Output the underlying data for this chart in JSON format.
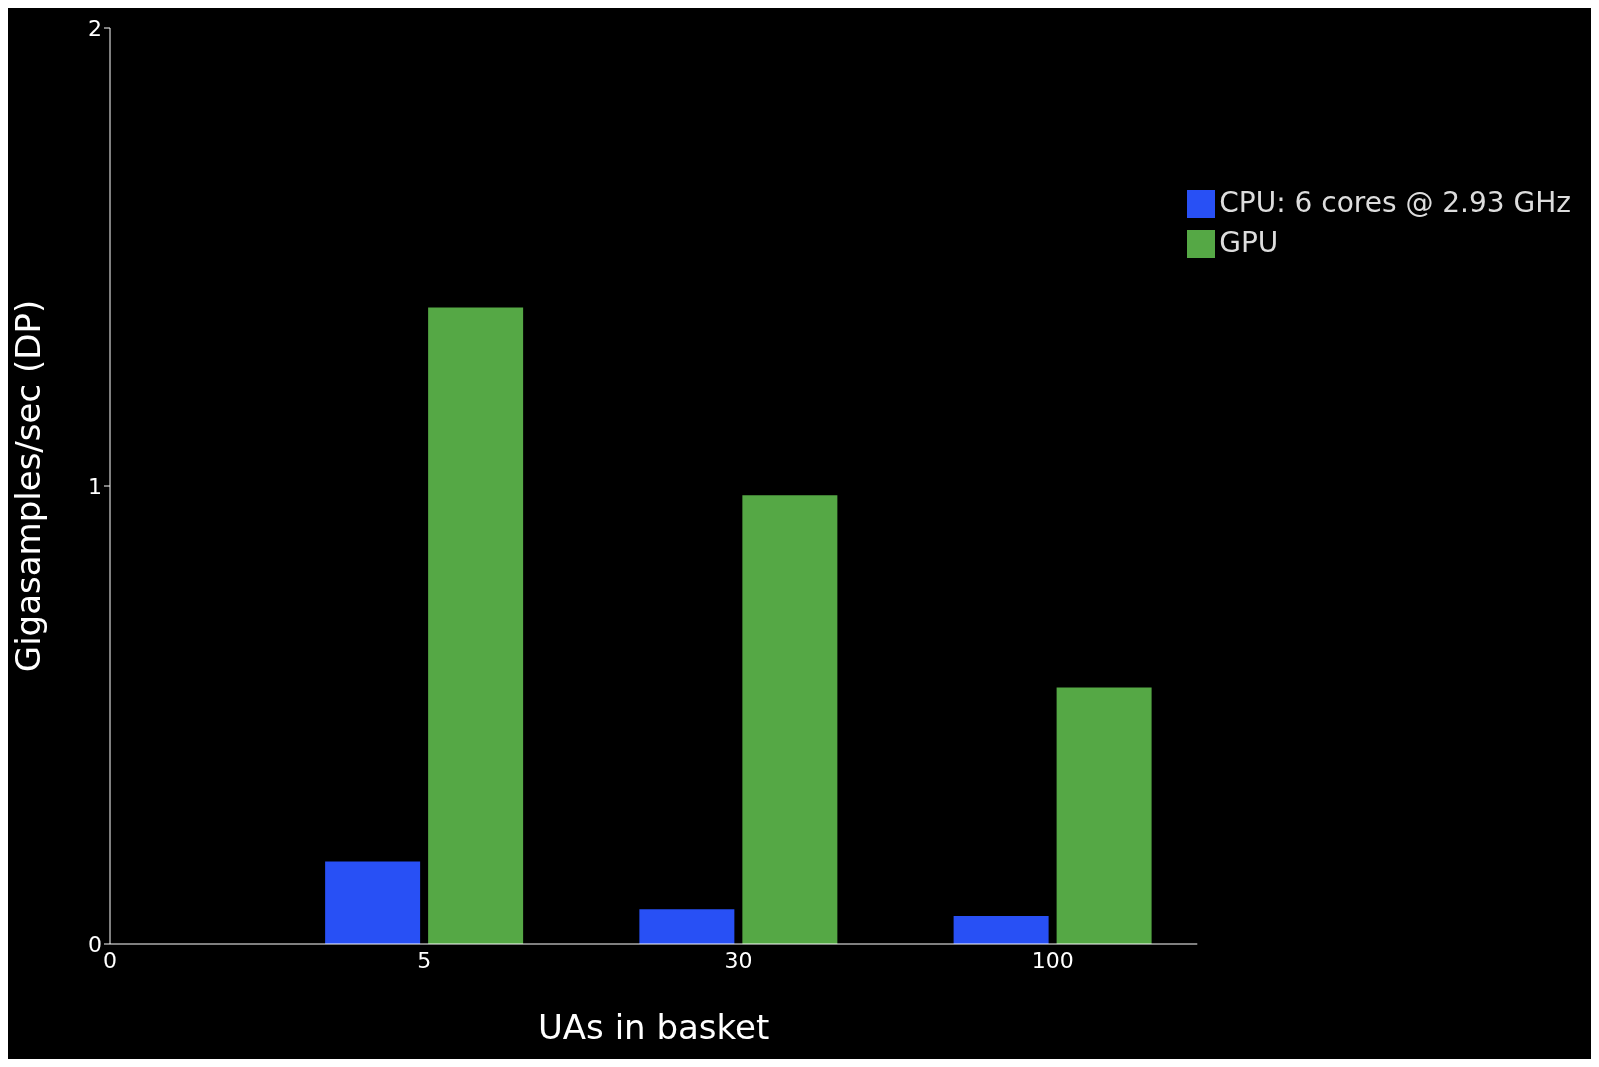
{
  "chart_data": {
    "type": "bar",
    "xlabel": "UAs in basket",
    "ylabel": "Gigasamples/sec (DP)",
    "categories": [
      "0",
      "5",
      "30",
      "100"
    ],
    "series": [
      {
        "name": "CPU: 6 cores @ 2.93 GHz",
        "color": "#2850f5",
        "values": [
          null,
          0.18,
          0.076,
          0.061
        ]
      },
      {
        "name": "GPU",
        "color": "#55a845",
        "values": [
          null,
          1.39,
          0.98,
          0.56
        ]
      }
    ],
    "ylim": [
      0,
      2
    ],
    "yticks": [
      0,
      1,
      2
    ],
    "grid": false,
    "legend": "top right"
  }
}
